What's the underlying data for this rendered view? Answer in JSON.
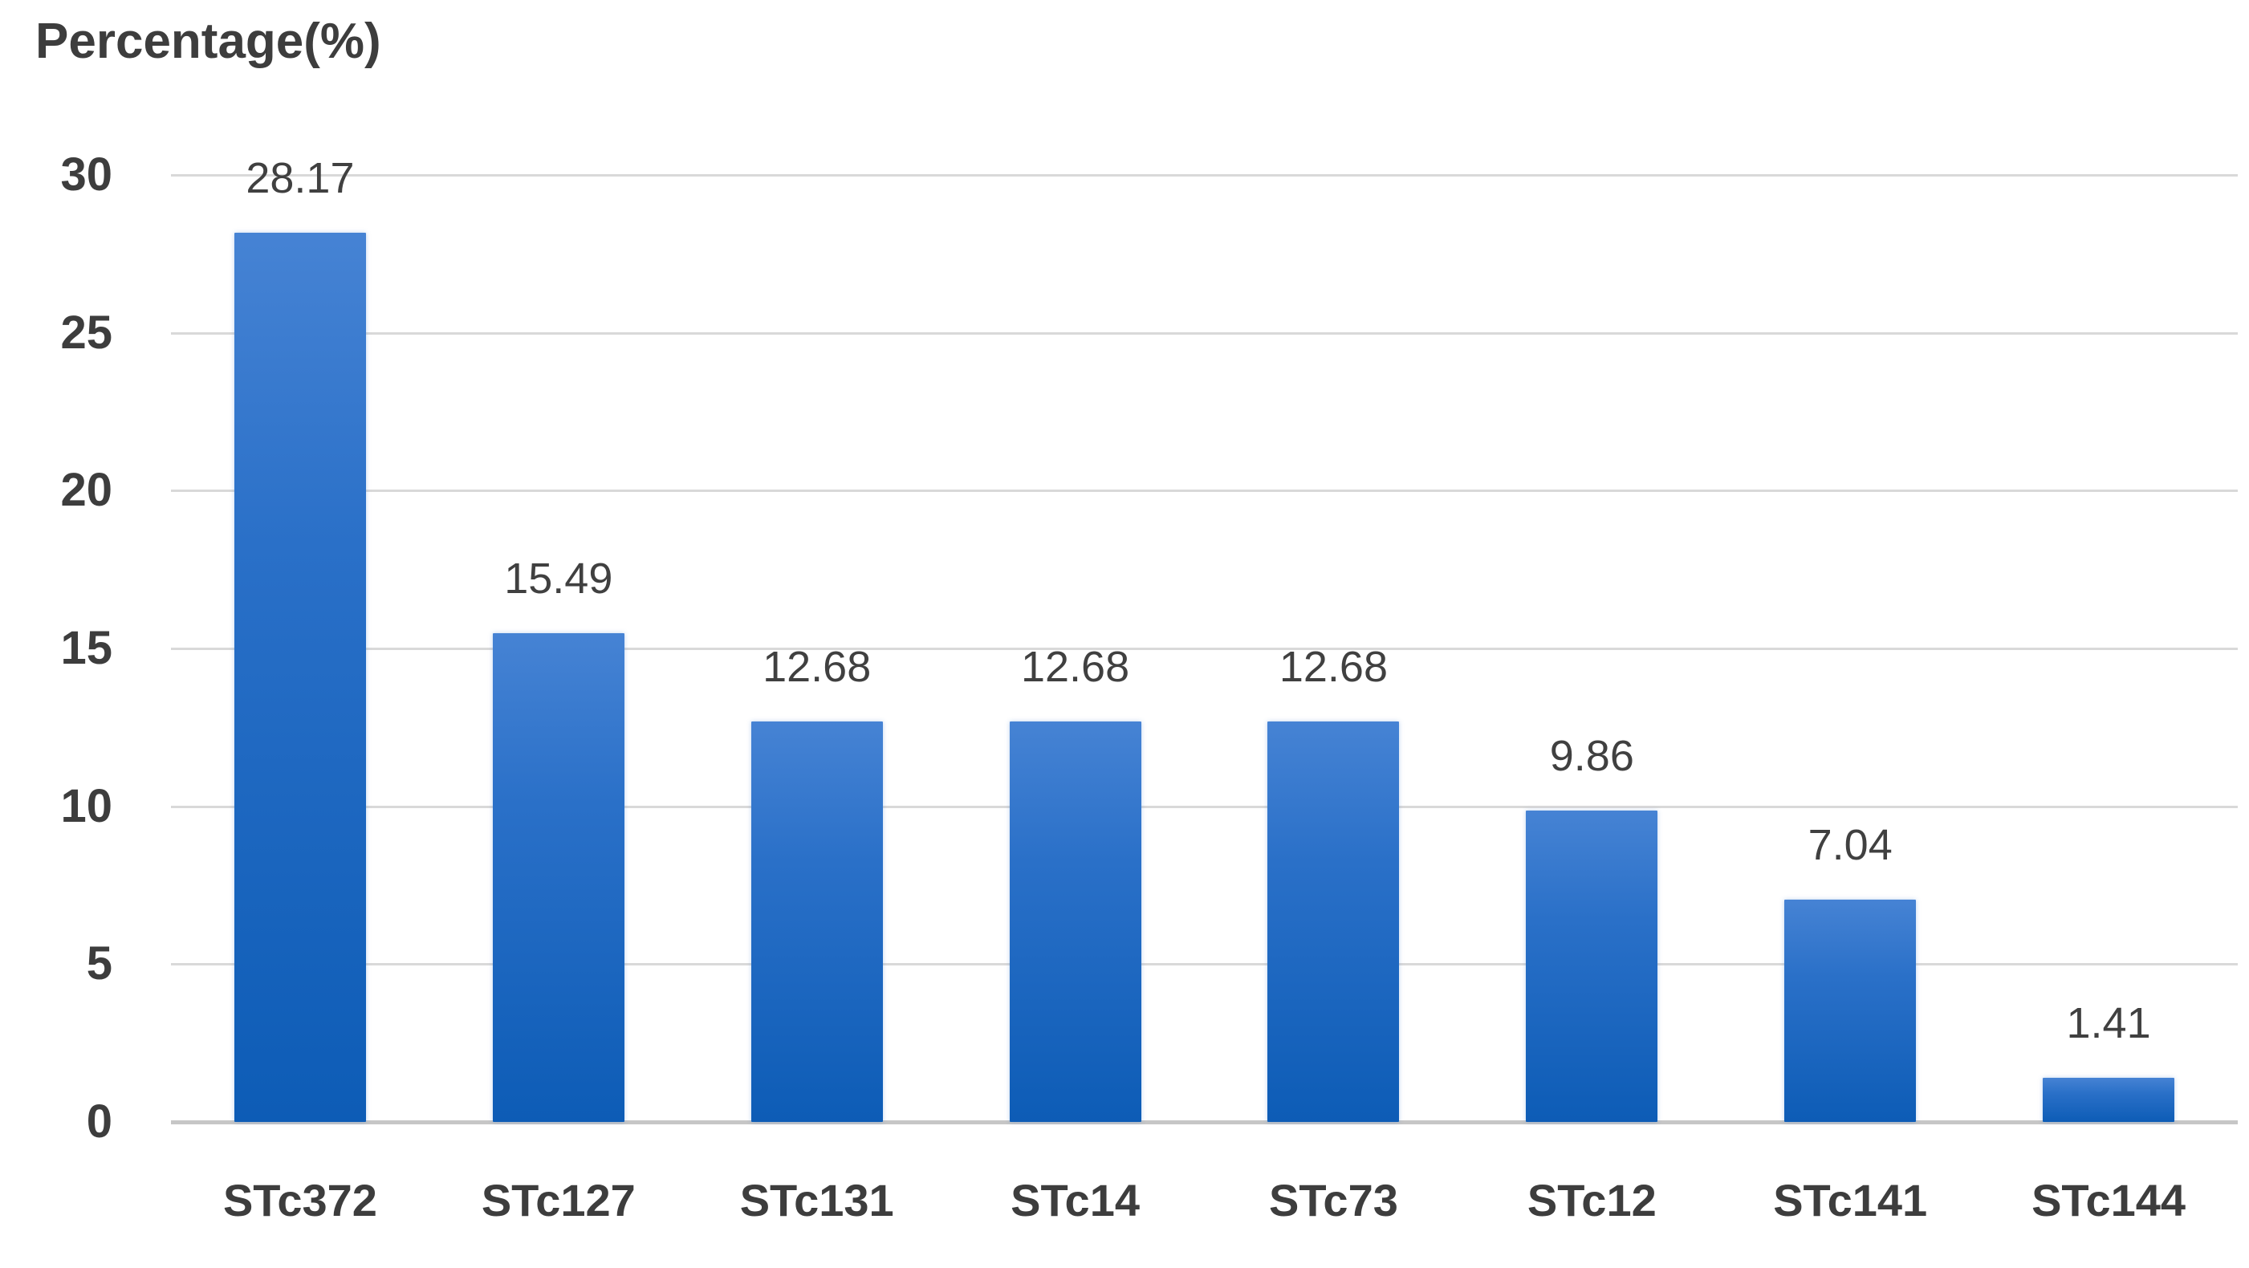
{
  "chart_data": {
    "type": "bar",
    "title": "Percentage(%)",
    "categories": [
      "STc372",
      "STc127",
      "STc131",
      "STc14",
      "STc73",
      "STc12",
      "STc141",
      "STc144"
    ],
    "values": [
      28.17,
      15.49,
      12.68,
      12.68,
      12.68,
      9.86,
      7.04,
      1.41
    ],
    "value_labels": [
      "28.17",
      "15.49",
      "12.68",
      "12.68",
      "12.68",
      "9.86",
      "7.04",
      "1.41"
    ],
    "xlabel": "",
    "ylabel": "Percentage(%)",
    "ylim": [
      0,
      30
    ],
    "ytick_interval": 5,
    "ytick_labels": [
      "0",
      "5",
      "10",
      "15",
      "20",
      "25",
      "30"
    ],
    "grid": true,
    "legend_position": "none",
    "colors": {
      "bar_top": "#4683d4",
      "bar_mid": "#2a70c8",
      "bar_bottom": "#0d5cb6",
      "gridline": "#d9d9d9",
      "axis_line": "#c6c6c6",
      "text": "#3d3d3d",
      "background": "#ffffff"
    }
  }
}
